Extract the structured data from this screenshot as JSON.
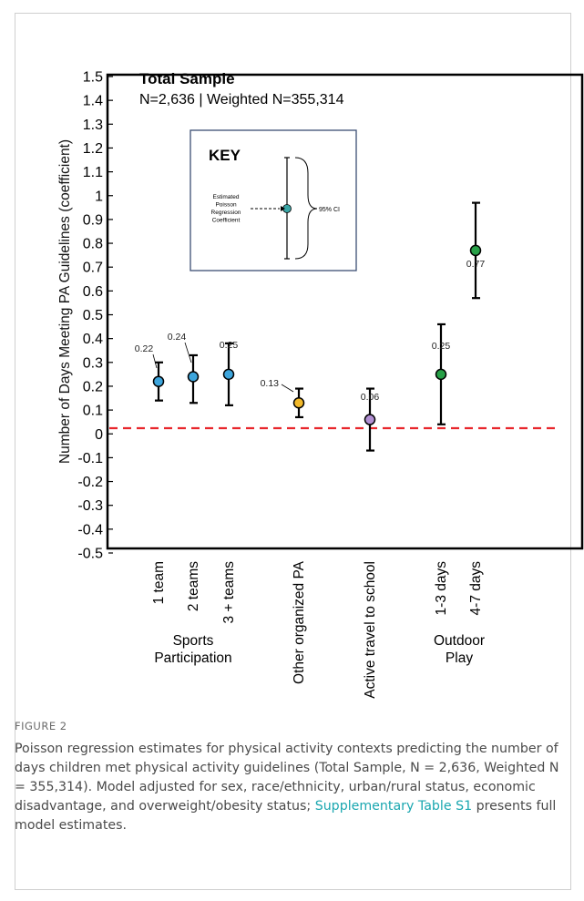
{
  "chart_data": {
    "type": "scatter",
    "title": "Total Sample",
    "subtitle": "N=2,636 | Weighted N=355,314",
    "ylabel": "Number of Days Meeting PA Guidelines (coefficient)",
    "xlabel": "",
    "ylim": [
      -0.5,
      1.5
    ],
    "yticks": [
      "1.5",
      "1.4",
      "1.3",
      "1.2",
      "1.1",
      "1",
      "0.9",
      "0.8",
      "0.7",
      "0.6",
      "0.5",
      "0.4",
      "0.3",
      "0.2",
      "0.1",
      "0",
      "-0.1",
      "-0.2",
      "-0.3",
      "-0.4",
      "-0.5"
    ],
    "reference_line": 0,
    "points": [
      {
        "category": "1 team",
        "value": 0.22,
        "label": "0.22",
        "ci": [
          0.14,
          0.3
        ],
        "color": "#3da5dc"
      },
      {
        "category": "2 teams",
        "value": 0.24,
        "label": "0.24",
        "ci": [
          0.13,
          0.33
        ],
        "color": "#3da5dc"
      },
      {
        "category": "3 + teams",
        "value": 0.25,
        "label": "0.25",
        "ci": [
          0.12,
          0.38
        ],
        "color": "#3da5dc"
      },
      {
        "category": "Other organized PA",
        "value": 0.13,
        "label": "0.13",
        "ci": [
          0.07,
          0.19
        ],
        "color": "#f2b92a"
      },
      {
        "category": "Active travel to school",
        "value": 0.06,
        "label": "0.06",
        "ci": [
          -0.07,
          0.19
        ],
        "color": "#b18fd3"
      },
      {
        "category": "1-3 days",
        "value": 0.25,
        "label": "0.25",
        "ci": [
          0.04,
          0.46
        ],
        "color": "#27a047"
      },
      {
        "category": "4-7 days",
        "value": 0.77,
        "label": "0.77",
        "ci": [
          0.57,
          0.97
        ],
        "color": "#27a047"
      }
    ],
    "groups": [
      {
        "label_lines": [
          "Sports",
          "Participation"
        ]
      },
      {
        "label_lines": [
          "Outdoor",
          "Play"
        ]
      }
    ],
    "key": {
      "title": "KEY",
      "estimate_label": [
        "Estimated",
        "Poisson",
        "Regression",
        "Coefficient"
      ],
      "ci_label": "95% CI"
    },
    "grid": false,
    "legend": "none"
  },
  "caption": {
    "figure_label": "FIGURE 2",
    "text_before_link": "Poisson regression estimates for physical activity contexts predicting the number of days children met physical activity guidelines (Total Sample, N = 2,636, Weighted N = 355,314). Model adjusted for sex, race/ethnicity, urban/rural status, economic disadvantage, and overweight/obesity status; ",
    "link_text": "Supplementary Table S1",
    "text_after_link": " presents full model estimates."
  }
}
